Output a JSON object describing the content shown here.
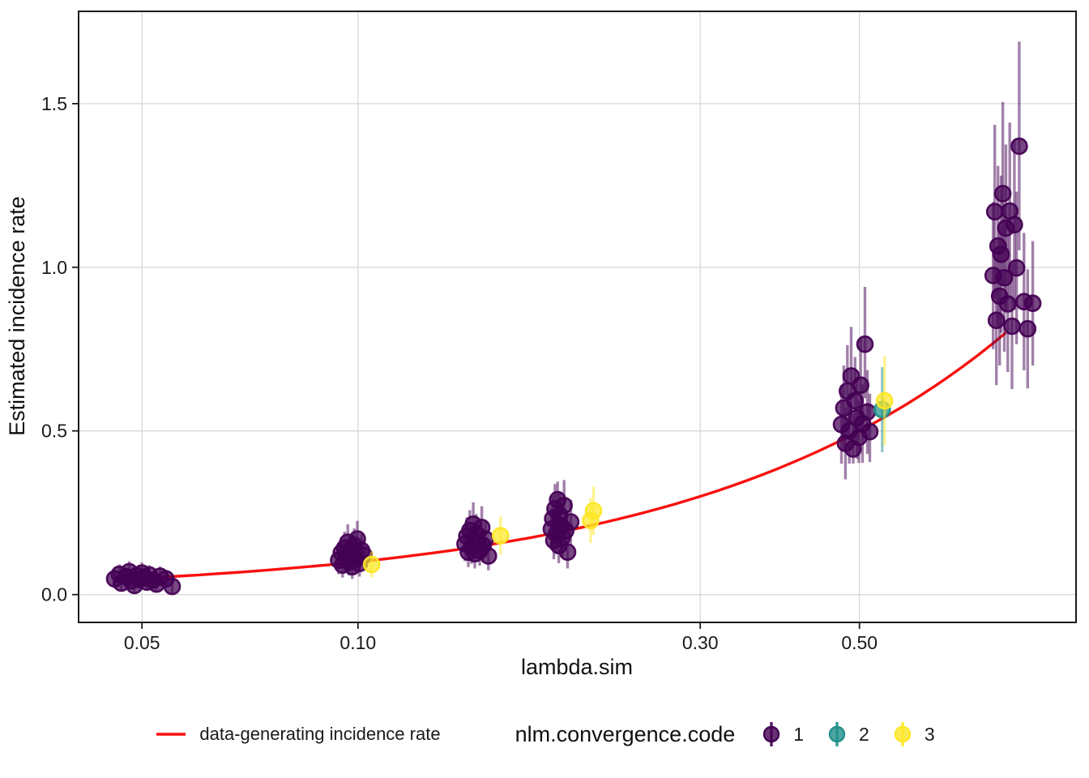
{
  "chart_data": {
    "type": "scatter",
    "subtype": "pointrange-with-reference-line",
    "title": "",
    "xlabel": "lambda.sim",
    "ylabel": "Estimated incidence rate",
    "x_scale": "log10",
    "x_domain": [
      0.0408,
      1.002
    ],
    "y_domain": [
      -0.085,
      1.782
    ],
    "grid": true,
    "grid_color": "#d9d9d9",
    "panel_border_color": "#1a1a1a",
    "tick_color": "#1a1a1a",
    "x_ticks": [
      {
        "value": 0.05,
        "label": "0.05"
      },
      {
        "value": 0.1,
        "label": "0.10"
      },
      {
        "value": 0.3,
        "label": "0.30"
      },
      {
        "value": 0.5,
        "label": "0.50"
      }
    ],
    "y_ticks": [
      {
        "value": 0.0,
        "label": "0.0"
      },
      {
        "value": 0.5,
        "label": "0.5"
      },
      {
        "value": 1.0,
        "label": "1.0"
      },
      {
        "value": 1.5,
        "label": "1.5"
      }
    ],
    "red_line": {
      "label": "data-generating incidence rate",
      "color": "#f8100e",
      "relation": "y equals x",
      "x_start": 0.05,
      "x_end": 0.8
    },
    "color_legend_title": "nlm.convergence.code",
    "codes": [
      {
        "code": "1",
        "color": "#440154"
      },
      {
        "code": "2",
        "color": "#21908C"
      },
      {
        "code": "3",
        "color": "#FDE725"
      }
    ],
    "point_format": [
      "lambda_jitter",
      "estimate",
      "ci_low",
      "ci_high",
      "nlm_code"
    ],
    "clusters": [
      {
        "lambda_sim": 0.05,
        "points": [
          [
            0.0458,
            0.048,
            0.02,
            0.076,
            "1"
          ],
          [
            0.0465,
            0.062,
            0.032,
            0.092,
            "1"
          ],
          [
            0.0468,
            0.035,
            0.012,
            0.058,
            "1"
          ],
          [
            0.0475,
            0.055,
            0.028,
            0.082,
            "1"
          ],
          [
            0.048,
            0.07,
            0.038,
            0.102,
            "1"
          ],
          [
            0.0483,
            0.042,
            0.018,
            0.066,
            "1"
          ],
          [
            0.0488,
            0.028,
            0.008,
            0.048,
            "1"
          ],
          [
            0.0492,
            0.058,
            0.03,
            0.086,
            "1"
          ],
          [
            0.0496,
            0.046,
            0.02,
            0.072,
            "1"
          ],
          [
            0.05,
            0.066,
            0.034,
            0.098,
            "1"
          ],
          [
            0.0504,
            0.052,
            0.024,
            0.08,
            "1"
          ],
          [
            0.0508,
            0.038,
            0.014,
            0.062,
            "1"
          ],
          [
            0.0512,
            0.06,
            0.03,
            0.09,
            "1"
          ],
          [
            0.0518,
            0.044,
            0.018,
            0.07,
            "1"
          ],
          [
            0.0524,
            0.032,
            0.01,
            0.054,
            "1"
          ],
          [
            0.053,
            0.056,
            0.026,
            0.086,
            "1"
          ],
          [
            0.054,
            0.048,
            0.02,
            0.076,
            "1"
          ],
          [
            0.0551,
            0.025,
            0.004,
            0.046,
            "1"
          ]
        ]
      },
      {
        "lambda_sim": 0.1,
        "points": [
          [
            0.094,
            0.105,
            0.062,
            0.148,
            "1"
          ],
          [
            0.0948,
            0.128,
            0.08,
            0.176,
            "1"
          ],
          [
            0.0952,
            0.09,
            0.052,
            0.128,
            "1"
          ],
          [
            0.0958,
            0.142,
            0.092,
            0.192,
            "1"
          ],
          [
            0.0962,
            0.115,
            0.07,
            0.16,
            "1"
          ],
          [
            0.0968,
            0.16,
            0.105,
            0.215,
            "1"
          ],
          [
            0.0972,
            0.1,
            0.058,
            0.142,
            "1"
          ],
          [
            0.0978,
            0.132,
            0.084,
            0.18,
            "1"
          ],
          [
            0.0982,
            0.085,
            0.048,
            0.122,
            "1"
          ],
          [
            0.0988,
            0.15,
            0.098,
            0.202,
            "1"
          ],
          [
            0.0992,
            0.11,
            0.066,
            0.154,
            "1"
          ],
          [
            0.0998,
            0.17,
            0.112,
            0.225,
            "1"
          ],
          [
            0.1005,
            0.095,
            0.055,
            0.135,
            "1"
          ],
          [
            0.1012,
            0.135,
            0.086,
            0.184,
            "1"
          ],
          [
            0.102,
            0.12,
            0.074,
            0.166,
            "1"
          ],
          [
            0.1045,
            0.092,
            0.052,
            0.132,
            "3"
          ]
        ]
      },
      {
        "lambda_sim": 0.15,
        "points": [
          [
            0.141,
            0.155,
            0.102,
            0.208,
            "1"
          ],
          [
            0.1418,
            0.178,
            0.12,
            0.236,
            "1"
          ],
          [
            0.1425,
            0.13,
            0.084,
            0.176,
            "1"
          ],
          [
            0.1432,
            0.196,
            0.134,
            0.258,
            "1"
          ],
          [
            0.144,
            0.145,
            0.094,
            0.196,
            "1"
          ],
          [
            0.1448,
            0.215,
            0.148,
            0.282,
            "1"
          ],
          [
            0.1455,
            0.125,
            0.08,
            0.17,
            "1"
          ],
          [
            0.1462,
            0.186,
            0.126,
            0.246,
            "1"
          ],
          [
            0.147,
            0.16,
            0.106,
            0.214,
            "1"
          ],
          [
            0.1478,
            0.135,
            0.088,
            0.182,
            "1"
          ],
          [
            0.1488,
            0.205,
            0.14,
            0.27,
            "1"
          ],
          [
            0.1495,
            0.15,
            0.098,
            0.202,
            "1"
          ],
          [
            0.1505,
            0.17,
            0.114,
            0.226,
            "1"
          ],
          [
            0.152,
            0.118,
            0.074,
            0.162,
            "1"
          ],
          [
            0.158,
            0.18,
            0.122,
            0.238,
            "3"
          ]
        ]
      },
      {
        "lambda_sim": 0.2,
        "points": [
          [
            0.186,
            0.2,
            0.136,
            0.264,
            "1"
          ],
          [
            0.1868,
            0.232,
            0.162,
            0.302,
            "1"
          ],
          [
            0.1875,
            0.165,
            0.108,
            0.222,
            "1"
          ],
          [
            0.1882,
            0.262,
            0.186,
            0.338,
            "1"
          ],
          [
            0.189,
            0.185,
            0.124,
            0.246,
            "1"
          ],
          [
            0.1898,
            0.29,
            0.208,
            0.345,
            "1"
          ],
          [
            0.1905,
            0.15,
            0.096,
            0.204,
            "1"
          ],
          [
            0.1912,
            0.242,
            0.17,
            0.314,
            "1"
          ],
          [
            0.192,
            0.21,
            0.144,
            0.276,
            "1"
          ],
          [
            0.1928,
            0.175,
            0.116,
            0.234,
            "1"
          ],
          [
            0.1938,
            0.272,
            0.194,
            0.35,
            "1"
          ],
          [
            0.1948,
            0.195,
            0.132,
            0.258,
            "1"
          ],
          [
            0.196,
            0.13,
            0.08,
            0.18,
            "1"
          ],
          [
            0.198,
            0.222,
            0.154,
            0.29,
            "1"
          ],
          [
            0.211,
            0.226,
            0.158,
            0.294,
            "3"
          ],
          [
            0.213,
            0.256,
            0.182,
            0.33,
            "3"
          ]
        ]
      },
      {
        "lambda_sim": 0.5,
        "points": [
          [
            0.472,
            0.52,
            0.4,
            0.64,
            "1"
          ],
          [
            0.4755,
            0.57,
            0.44,
            0.7,
            "1"
          ],
          [
            0.478,
            0.462,
            0.352,
            0.572,
            "1"
          ],
          [
            0.481,
            0.622,
            0.482,
            0.762,
            "1"
          ],
          [
            0.484,
            0.5,
            0.4,
            0.615,
            "1"
          ],
          [
            0.487,
            0.668,
            0.518,
            0.818,
            "1"
          ],
          [
            0.49,
            0.445,
            0.4,
            0.552,
            "1"
          ],
          [
            0.493,
            0.592,
            0.458,
            0.726,
            "1"
          ],
          [
            0.496,
            0.54,
            0.415,
            0.665,
            "1"
          ],
          [
            0.499,
            0.48,
            0.402,
            0.592,
            "1"
          ],
          [
            0.502,
            0.64,
            0.495,
            0.785,
            "1"
          ],
          [
            0.505,
            0.522,
            0.402,
            0.642,
            "1"
          ],
          [
            0.509,
            0.765,
            0.6,
            0.94,
            "1"
          ],
          [
            0.513,
            0.558,
            0.43,
            0.686,
            "1"
          ],
          [
            0.517,
            0.498,
            0.405,
            0.614,
            "1"
          ],
          [
            0.538,
            0.565,
            0.435,
            0.695,
            "2"
          ],
          [
            0.542,
            0.592,
            0.456,
            0.728,
            "3"
          ]
        ]
      },
      {
        "lambda_sim": 0.8,
        "points": [
          [
            0.768,
            0.975,
            0.75,
            1.2,
            "1"
          ],
          [
            0.772,
            1.17,
            0.905,
            1.435,
            "1"
          ],
          [
            0.776,
            0.838,
            0.64,
            1.036,
            "1"
          ],
          [
            0.78,
            1.065,
            0.82,
            1.31,
            "1"
          ],
          [
            0.784,
            0.912,
            0.7,
            1.124,
            "1"
          ],
          [
            0.788,
            1.04,
            0.8,
            1.28,
            "1"
          ],
          [
            0.792,
            1.225,
            0.945,
            1.505,
            "1"
          ],
          [
            0.796,
            0.968,
            0.742,
            1.194,
            "1"
          ],
          [
            0.8,
            1.12,
            0.865,
            1.375,
            "1"
          ],
          [
            0.805,
            0.888,
            0.68,
            1.096,
            "1"
          ],
          [
            0.81,
            1.172,
            0.902,
            1.442,
            "1"
          ],
          [
            0.816,
            0.82,
            0.628,
            1.012,
            "1"
          ],
          [
            0.822,
            1.13,
            0.87,
            1.39,
            "1"
          ],
          [
            0.828,
            0.998,
            0.765,
            1.231,
            "1"
          ],
          [
            0.835,
            1.37,
            1.052,
            1.69,
            "1"
          ],
          [
            0.848,
            0.895,
            0.685,
            1.105,
            "1"
          ],
          [
            0.858,
            0.812,
            0.63,
            0.994,
            "1"
          ],
          [
            0.872,
            0.89,
            0.7,
            1.08,
            "1"
          ]
        ]
      }
    ]
  }
}
